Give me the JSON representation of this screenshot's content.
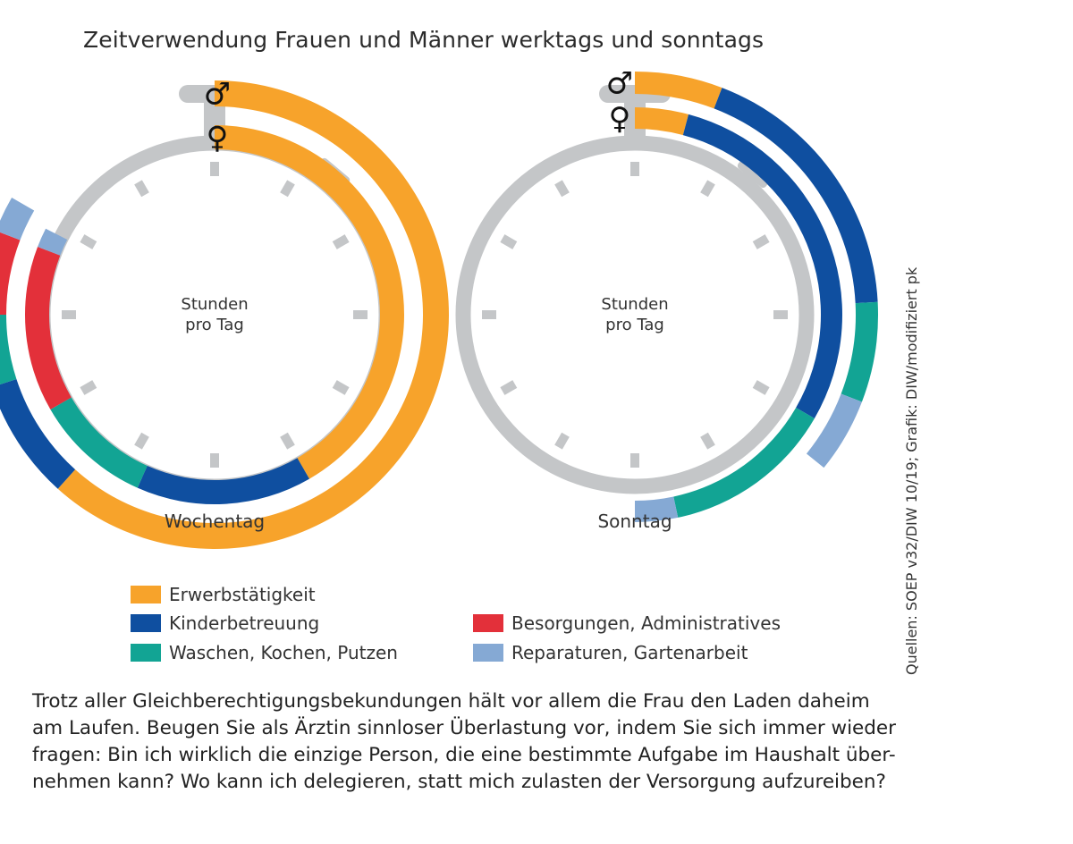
{
  "title": "Zeitverwendung Frauen und Männer werktags und sonntags",
  "colors": {
    "clock": "#c4c6c8",
    "Erwerbstätigkeit": "#f7a32b",
    "Kinderbetreuung": "#0f4fa0",
    "Waschen, Kochen, Putzen": "#12a494",
    "Besorgungen, Administratives": "#e3303a",
    "Reparaturen, Gartenarbeit": "#85a9d4"
  },
  "chart_data": [
    {
      "type": "radial-bar",
      "label": "Wochentag",
      "center_label": [
        "Stunden",
        "pro Tag"
      ],
      "unit": "Stunden pro Tag",
      "scale_max": 12,
      "series": [
        {
          "name": "♂",
          "segments": [
            {
              "category": "Erwerbstätigkeit",
              "value": 7.4
            },
            {
              "category": "Kinderbetreuung",
              "value": 1.0
            },
            {
              "category": "Waschen, Kochen, Putzen",
              "value": 0.6
            },
            {
              "category": "Besorgungen, Administratives",
              "value": 0.7
            },
            {
              "category": "Reparaturen, Gartenarbeit",
              "value": 0.3
            }
          ]
        },
        {
          "name": "♀",
          "segments": [
            {
              "category": "Erwerbstätigkeit",
              "value": 5.0
            },
            {
              "category": "Kinderbetreuung",
              "value": 1.8
            },
            {
              "category": "Waschen, Kochen, Putzen",
              "value": 1.2
            },
            {
              "category": "Besorgungen, Administratives",
              "value": 1.7
            },
            {
              "category": "Reparaturen, Gartenarbeit",
              "value": 0.2
            }
          ]
        }
      ]
    },
    {
      "type": "radial-bar",
      "label": "Sonntag",
      "center_label": [
        "Stunden",
        "pro Tag"
      ],
      "unit": "Stunden pro Tag",
      "scale_max": 12,
      "series": [
        {
          "name": "♂",
          "segments": [
            {
              "category": "Erwerbstätigkeit",
              "value": 0.7
            },
            {
              "category": "Kinderbetreuung",
              "value": 2.2
            },
            {
              "category": "Waschen, Kochen, Putzen",
              "value": 0.8
            },
            {
              "category": "Reparaturen, Gartenarbeit",
              "value": 0.6
            }
          ]
        },
        {
          "name": "♀",
          "segments": [
            {
              "category": "Erwerbstätigkeit",
              "value": 0.5
            },
            {
              "category": "Kinderbetreuung",
              "value": 3.5
            },
            {
              "category": "Waschen, Kochen, Putzen",
              "value": 1.6
            },
            {
              "category": "Reparaturen, Gartenarbeit",
              "value": 0.4
            }
          ]
        }
      ]
    }
  ],
  "legend": [
    {
      "label": "Erwerbstätigkeit",
      "color": "#f7a32b"
    },
    {
      "label": "Kinderbetreuung",
      "color": "#0f4fa0"
    },
    {
      "label": "Waschen, Kochen, Putzen",
      "color": "#12a494"
    },
    {
      "label": "Besorgungen, Administratives",
      "color": "#e3303a"
    },
    {
      "label": "Reparaturen, Gartenarbeit",
      "color": "#85a9d4"
    }
  ],
  "source": "Quellen: SOEP v32/DIW 10/19; Grafik: DIW/modifiziert pk",
  "body_lines": [
    "Trotz aller Gleichberechtigungsbekundungen hält vor allem die Frau den Laden daheim",
    "am Laufen. Beugen Sie als Ärztin sinnloser Überlastung vor, indem Sie sich immer wieder",
    "fragen: Bin ich wirklich die einzige Person, die eine bestimmte Aufgabe im Haushalt über-",
    "nehmen kann? Wo kann ich delegieren, statt mich zulasten der Versorgung aufzureiben?"
  ]
}
